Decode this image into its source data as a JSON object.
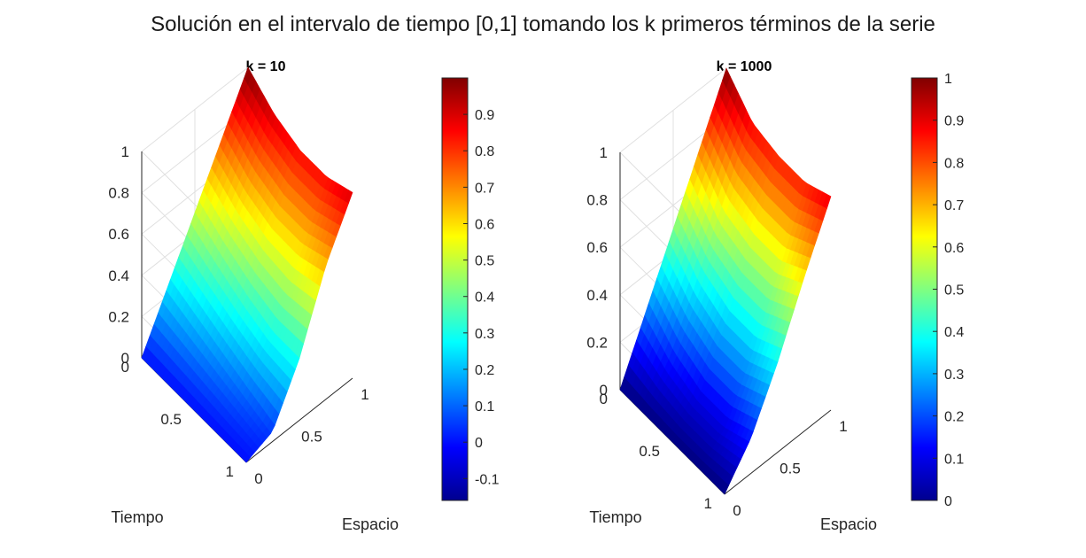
{
  "figure": {
    "suptitle": "Solución en el intervalo de tiempo [0,1] tomando los k primeros términos de la serie"
  },
  "chart_data": [
    {
      "type": "surface",
      "title": "k = 10",
      "xlabel": "Espacio",
      "ylabel": "Tiempo",
      "zlabel": "",
      "x_ticks": [
        "0",
        "0.5",
        "1"
      ],
      "y_ticks": [
        "0",
        "0.5",
        "1"
      ],
      "z_ticks": [
        "0",
        "0.2",
        "0.4",
        "0.6",
        "0.8",
        "1"
      ],
      "xlim": [
        0,
        1
      ],
      "ylim": [
        0,
        1
      ],
      "zlim": [
        -0.1,
        1
      ],
      "grid": true,
      "colormap": "jet",
      "clim": [
        -0.16,
        1.0
      ],
      "colorbar_ticks": [
        "-0.1",
        "0",
        "0.1",
        "0.2",
        "0.3",
        "0.4",
        "0.5",
        "0.6",
        "0.7",
        "0.8",
        "0.9"
      ],
      "surface_samples": {
        "x": [
          0,
          0.25,
          0.5,
          0.75,
          1
        ],
        "y": [
          0,
          0.25,
          0.5,
          0.75,
          1
        ],
        "z": [
          [
            0.0,
            0.0,
            0.0,
            0.0,
            0.0
          ],
          [
            0.25,
            0.2,
            0.15,
            0.1,
            0.05
          ],
          [
            0.5,
            0.42,
            0.35,
            0.3,
            0.3
          ],
          [
            0.75,
            0.65,
            0.6,
            0.6,
            0.65
          ],
          [
            1.0,
            0.9,
            0.85,
            0.85,
            0.9
          ]
        ]
      }
    },
    {
      "type": "surface",
      "title": "k = 1000",
      "xlabel": "Espacio",
      "ylabel": "Tiempo",
      "zlabel": "",
      "x_ticks": [
        "0",
        "0.5",
        "1"
      ],
      "y_ticks": [
        "0",
        "0.5",
        "1"
      ],
      "z_ticks": [
        "0",
        "0.2",
        "0.4",
        "0.6",
        "0.8",
        "1"
      ],
      "xlim": [
        0,
        1
      ],
      "ylim": [
        0,
        1
      ],
      "zlim": [
        0,
        1
      ],
      "grid": true,
      "colormap": "jet",
      "clim": [
        0,
        1
      ],
      "colorbar_ticks": [
        "0",
        "0.1",
        "0.2",
        "0.3",
        "0.4",
        "0.5",
        "0.6",
        "0.7",
        "0.8",
        "0.9",
        "1"
      ],
      "surface_samples": {
        "x": [
          0,
          0.25,
          0.5,
          0.75,
          1
        ],
        "y": [
          0,
          0.25,
          0.5,
          0.75,
          1
        ],
        "z": [
          [
            0.0,
            0.0,
            0.0,
            0.0,
            0.0
          ],
          [
            0.25,
            0.15,
            0.1,
            0.1,
            0.15
          ],
          [
            0.5,
            0.38,
            0.32,
            0.32,
            0.38
          ],
          [
            0.75,
            0.62,
            0.58,
            0.58,
            0.65
          ],
          [
            1.0,
            0.88,
            0.85,
            0.85,
            0.9
          ]
        ]
      }
    }
  ]
}
